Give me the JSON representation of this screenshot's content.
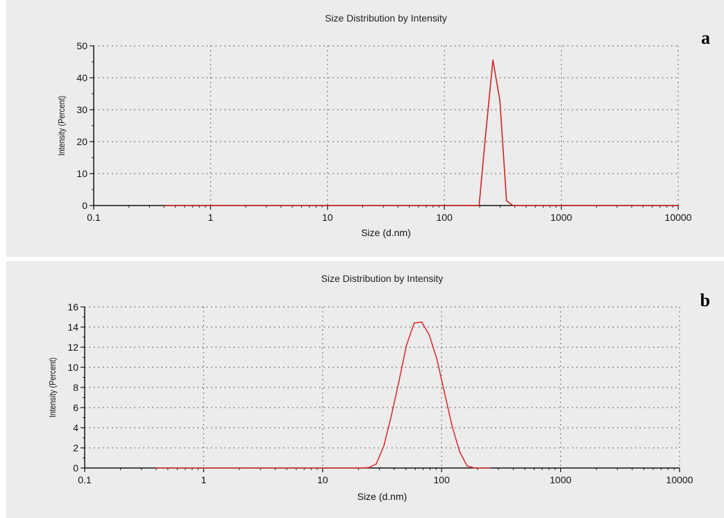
{
  "chart_data": [
    {
      "panel": "a",
      "type": "line",
      "title": "Size Distribution by Intensity",
      "xlabel": "Size (d.nm)",
      "ylabel": "Intensity (Percent)",
      "xscale": "log",
      "xlim": [
        0.1,
        10000
      ],
      "ylim": [
        0,
        50
      ],
      "xticks": [
        0.1,
        1,
        10,
        100,
        1000,
        10000
      ],
      "xtick_labels": [
        "0.1",
        "1",
        "10",
        "100",
        "1000",
        "10000"
      ],
      "yticks": [
        0,
        10,
        20,
        30,
        40,
        50
      ],
      "ytick_labels": [
        "0",
        "10",
        "20",
        "30",
        "40",
        "50"
      ],
      "grid": true,
      "line_color": "#d42020",
      "series": [
        {
          "x": [
            0.4,
            1,
            10,
            100,
            198,
            225,
            260,
            298,
            340,
            385,
            500,
            1000,
            5000,
            10000
          ],
          "y": [
            0,
            0,
            0,
            0,
            0,
            22,
            45.5,
            33,
            1.5,
            0,
            0,
            0,
            0,
            0
          ]
        }
      ]
    },
    {
      "panel": "b",
      "type": "line",
      "title": "Size Distribution by Intensity",
      "xlabel": "Size (d.nm)",
      "ylabel": "Intensity (Percent)",
      "xscale": "log",
      "xlim": [
        0.1,
        10000
      ],
      "ylim": [
        0,
        16
      ],
      "xticks": [
        0.1,
        1,
        10,
        100,
        1000,
        10000
      ],
      "xtick_labels": [
        "0.1",
        "1",
        "10",
        "100",
        "1000",
        "10000"
      ],
      "yticks": [
        0,
        2,
        4,
        6,
        8,
        10,
        12,
        14,
        16
      ],
      "ytick_labels": [
        "0",
        "2",
        "4",
        "6",
        "8",
        "10",
        "12",
        "14",
        "16"
      ],
      "grid": true,
      "line_color": "#e03030",
      "series": [
        {
          "x": [
            0.4,
            1,
            10,
            21,
            24.4,
            28.2,
            32.7,
            37.8,
            43.8,
            50.7,
            58.8,
            68.1,
            78.8,
            91.3,
            105.7,
            122.4,
            141.8,
            164.2,
            190.1,
            220.2,
            255
          ],
          "y": [
            0,
            0,
            0,
            0,
            0.05,
            0.4,
            2.2,
            5.2,
            8.6,
            12.2,
            14.4,
            14.5,
            13.2,
            10.8,
            7.5,
            4.2,
            1.6,
            0.2,
            0,
            0,
            0
          ]
        }
      ]
    }
  ],
  "labels": {
    "a": "a",
    "b": "b"
  }
}
